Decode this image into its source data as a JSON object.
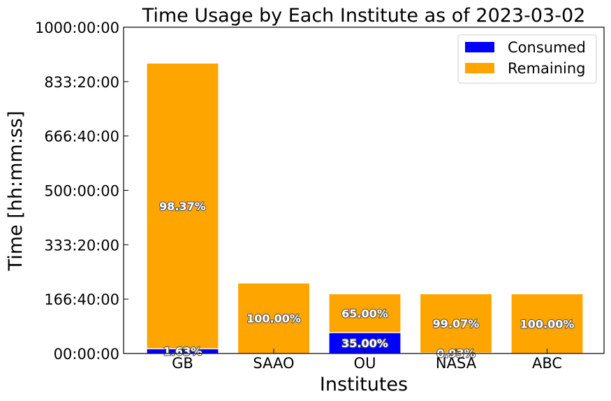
{
  "chart_data": {
    "type": "bar",
    "stacked": true,
    "title": "Time Usage by Each Institute as of 2023-03-02",
    "xlabel": "Institutes",
    "ylabel": "Time [hh:mm:ss]",
    "categories": [
      "GB",
      "SAAO",
      "OU",
      "NASA",
      "ABC"
    ],
    "yticks": [
      "00:00:00",
      "166:40:00",
      "333:20:00",
      "500:00:00",
      "666:40:00",
      "833:20:00",
      "1000:00:00"
    ],
    "ylim_hours": [
      0,
      1000
    ],
    "series": [
      {
        "name": "Consumed",
        "color": "#0000ff",
        "values_hours": [
          14.5,
          0,
          64,
          1.7,
          0
        ],
        "labels": [
          "1.63%",
          "",
          "35.00%",
          "0.93%",
          ""
        ]
      },
      {
        "name": "Remaining",
        "color": "#ffa500",
        "values_hours": [
          875.5,
          216,
          119,
          181.3,
          183
        ],
        "labels": [
          "98.37%",
          "100.00%",
          "65.00%",
          "99.07%",
          "100.00%"
        ]
      }
    ],
    "legend_position": "top-right",
    "grid": false
  }
}
